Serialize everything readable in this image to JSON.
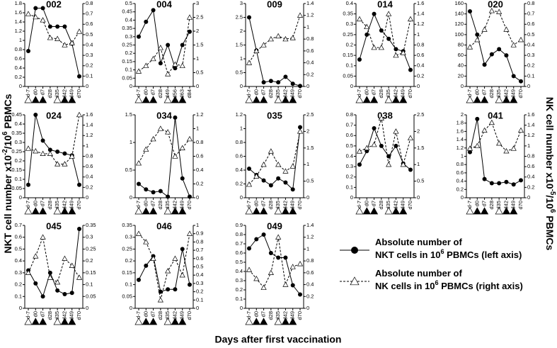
{
  "y_label": [
    "NKT cell number x10",
    "-2",
    "/10",
    "6",
    " PBMCs"
  ],
  "y2_label": [
    "NK cell number x10",
    "-5",
    "/10",
    "6",
    " PBMCs"
  ],
  "x_label": "Days after first vaccination",
  "legend": [
    {
      "lines": [
        [
          "Absolute number of"
        ],
        [
          "NKT cells in 10",
          "6",
          " PBMCs (left axis)"
        ]
      ]
    },
    {
      "lines": [
        [
          "Absolute number of"
        ],
        [
          "NK cells in 10",
          "6",
          " PBMCs (right axis)"
        ]
      ]
    }
  ],
  "chart_data": [
    {
      "type": "line",
      "title": "002",
      "categories": [
        "d-7",
        "d0",
        "d7",
        "d28",
        "d35",
        "d42",
        "d49",
        "d70"
      ],
      "ylim": [
        0,
        1.8
      ],
      "yticks": [
        0,
        0.2,
        0.4,
        0.6,
        0.8,
        1,
        1.2,
        1.4,
        1.6,
        1.8
      ],
      "y2lim": [
        0,
        0.8
      ],
      "y2ticks": [
        0,
        0.1,
        0.2,
        0.3,
        0.4,
        0.5,
        0.6,
        0.7,
        0.8
      ],
      "series": [
        {
          "color": "#000000",
          "values": [
            0.77,
            1.7,
            1.7,
            1.3,
            1.3,
            1.3,
            0.93,
            0.22
          ]
        },
        {
          "color": "#000000",
          "axis": "y2",
          "values": [
            0.7,
            0.67,
            0.64,
            0.47,
            0.46,
            0.4,
            0.42,
            0.53
          ]
        }
      ]
    },
    {
      "type": "line",
      "title": "004",
      "categories": [
        "d-7",
        "d0",
        "d7",
        "d28",
        "d49",
        "d56",
        "d63",
        "d84"
      ],
      "ylim": [
        0,
        0.5
      ],
      "yticks": [
        0,
        0.05,
        0.1,
        0.15,
        0.2,
        0.25,
        0.3,
        0.35,
        0.4,
        0.45,
        0.5
      ],
      "y2lim": [
        0,
        3
      ],
      "y2ticks": [
        0,
        0.5,
        1,
        1.5,
        2,
        2.5,
        3
      ],
      "series": [
        {
          "color": "#000000",
          "values": [
            0.3,
            0.39,
            0.46,
            0.14,
            0.25,
            0.11,
            0.25,
            0.33
          ]
        },
        {
          "color": "#000000",
          "axis": "y2",
          "values": [
            0.55,
            0.75,
            1.0,
            1.4,
            0.45,
            0.8,
            0.75,
            2.5
          ]
        }
      ]
    },
    {
      "type": "line",
      "title": "009",
      "categories": [
        "d-7",
        "d0",
        "d7",
        "d28",
        "d35",
        "d42",
        "d49",
        "d70"
      ],
      "ylim": [
        0,
        3
      ],
      "yticks": [
        0,
        0.5,
        1,
        1.5,
        2,
        2.5,
        3
      ],
      "y2lim": [
        0,
        1.4
      ],
      "y2ticks": [
        0,
        0.2,
        0.4,
        0.6,
        0.8,
        1,
        1.2,
        1.4
      ],
      "series": [
        {
          "color": "#000000",
          "values": [
            2.5,
            1.3,
            0.15,
            0.2,
            0.15,
            0.35,
            0.1,
            0.02
          ]
        },
        {
          "color": "#000000",
          "axis": "y2",
          "values": [
            0.4,
            0.6,
            0.7,
            0.8,
            0.85,
            0.8,
            0.82,
            1.2
          ]
        }
      ]
    },
    {
      "type": "line",
      "title": "014",
      "categories": [
        "d-7",
        "d0",
        "d7",
        "d28",
        "d35",
        "d42",
        "d49",
        "d70"
      ],
      "ylim": [
        0,
        0.4
      ],
      "yticks": [
        0,
        0.05,
        0.1,
        0.15,
        0.2,
        0.25,
        0.3,
        0.35,
        0.4
      ],
      "y2lim": [
        0,
        1.6
      ],
      "y2ticks": [
        0,
        0.2,
        0.4,
        0.6,
        0.8,
        1,
        1.2,
        1.4,
        1.6
      ],
      "series": [
        {
          "color": "#000000",
          "values": [
            0.13,
            0.25,
            0.35,
            0.27,
            0.23,
            0.18,
            0.17,
            0.08
          ]
        },
        {
          "color": "#000000",
          "axis": "y2",
          "values": [
            1.3,
            1.15,
            0.75,
            0.75,
            1.4,
            0.6,
            0.65,
            1.3
          ]
        }
      ]
    },
    {
      "type": "line",
      "title": "020",
      "categories": [
        "d-7",
        "d0",
        "d7",
        "d28",
        "d35",
        "d42",
        "d49",
        "d70"
      ],
      "ylim": [
        0,
        160
      ],
      "yticks": [
        0,
        20,
        40,
        60,
        80,
        100,
        120,
        140,
        160
      ],
      "y2lim": [
        0,
        0.8
      ],
      "y2ticks": [
        0,
        0.1,
        0.2,
        0.3,
        0.4,
        0.5,
        0.6,
        0.7,
        0.8
      ],
      "series": [
        {
          "color": "#000000",
          "values": [
            145,
            100,
            42,
            62,
            72,
            60,
            20,
            10
          ]
        },
        {
          "color": "#000000",
          "axis": "y2",
          "values": [
            0.38,
            0.45,
            0.55,
            0.73,
            0.72,
            0.55,
            0.4,
            0.45
          ]
        }
      ]
    },
    {
      "type": "line",
      "title": "024",
      "categories": [
        "d-7",
        "d0",
        "d7",
        "d28",
        "d35",
        "d42",
        "d49",
        "d70"
      ],
      "ylim": [
        0,
        0.45
      ],
      "yticks": [
        0,
        0.05,
        0.1,
        0.15,
        0.2,
        0.25,
        0.3,
        0.35,
        0.4,
        0.45
      ],
      "y2lim": [
        0,
        1.6
      ],
      "y2ticks": [
        0,
        0.2,
        0.4,
        0.6,
        0.8,
        1,
        1.2,
        1.4,
        1.6
      ],
      "series": [
        {
          "color": "#000000",
          "values": [
            0.07,
            0.45,
            0.31,
            0.26,
            0.25,
            0.24,
            0.23,
            0.07
          ]
        },
        {
          "color": "#000000",
          "axis": "y2",
          "values": [
            0.95,
            0.9,
            0.85,
            0.85,
            0.65,
            0.65,
            0.8,
            1.6
          ]
        }
      ]
    },
    {
      "type": "line",
      "title": "034",
      "categories": [
        "d-7",
        "d0",
        "d7",
        "d28",
        "d35",
        "d42",
        "d49",
        "d70"
      ],
      "ylim": [
        0,
        1.5
      ],
      "yticks": [
        0,
        0.5,
        1,
        1.5
      ],
      "y2lim": [
        0,
        1.2
      ],
      "y2ticks": [
        0,
        0.2,
        0.4,
        0.6,
        0.8,
        1,
        1.2
      ],
      "series": [
        {
          "color": "#000000",
          "values": [
            0.25,
            0.15,
            0.1,
            0.12,
            0.02,
            1.45,
            0.35,
            0.02
          ]
        },
        {
          "color": "#000000",
          "axis": "y2",
          "values": [
            0.5,
            0.7,
            0.85,
            1.0,
            0.95,
            0.6,
            0.72,
            0.85
          ]
        }
      ]
    },
    {
      "type": "line",
      "title": "035",
      "categories": [
        "d-7",
        "d0",
        "d7",
        "d28",
        "d35",
        "d42",
        "d49",
        "d70"
      ],
      "ylim": [
        0,
        1.2
      ],
      "yticks": [
        0,
        0.2,
        0.4,
        0.6,
        0.8,
        1,
        1.2
      ],
      "y2lim": [
        0,
        2.5
      ],
      "y2ticks": [
        0,
        0.5,
        1,
        1.5,
        2,
        2.5
      ],
      "series": [
        {
          "color": "#000000",
          "values": [
            0.42,
            0.33,
            0.25,
            0.18,
            0.28,
            0.22,
            0.12,
            1.02
          ]
        },
        {
          "color": "#000000",
          "axis": "y2",
          "values": [
            0.4,
            0.65,
            1.0,
            1.4,
            1.0,
            0.8,
            0.95,
            2.0
          ]
        }
      ]
    },
    {
      "type": "line",
      "title": "038",
      "categories": [
        "d-7",
        "d0",
        "d7",
        "d28",
        "d35",
        "d42",
        "d49",
        "d70"
      ],
      "ylim": [
        0,
        0.8
      ],
      "yticks": [
        0,
        0.1,
        0.2,
        0.3,
        0.4,
        0.5,
        0.6,
        0.7,
        0.8
      ],
      "y2lim": [
        0,
        2.5
      ],
      "y2ticks": [
        0,
        0.5,
        1,
        1.5,
        2,
        2.5
      ],
      "series": [
        {
          "color": "#000000",
          "values": [
            0.32,
            0.45,
            0.67,
            0.5,
            0.4,
            0.5,
            0.33,
            0.27
          ]
        },
        {
          "color": "#000000",
          "axis": "y2",
          "values": [
            1.4,
            1.5,
            1.6,
            2.4,
            1.0,
            2.0,
            1.0,
            1.8
          ]
        }
      ]
    },
    {
      "type": "line",
      "title": "041",
      "categories": [
        "d-7",
        "d0",
        "d7",
        "d28",
        "d35",
        "d42",
        "d49",
        "d70"
      ],
      "ylim": [
        0,
        2
      ],
      "yticks": [
        0,
        0.2,
        0.4,
        0.6,
        0.8,
        1,
        1.2,
        1.4,
        1.6,
        1.8,
        2
      ],
      "y2lim": [
        0,
        1.6
      ],
      "y2ticks": [
        0,
        0.2,
        0.4,
        0.6,
        0.8,
        1,
        1.2,
        1.4,
        1.6
      ],
      "series": [
        {
          "color": "#000000",
          "values": [
            1.1,
            1.9,
            0.45,
            0.35,
            0.35,
            0.38,
            0.32,
            0.42
          ]
        },
        {
          "color": "#000000",
          "axis": "y2",
          "values": [
            0.95,
            1.0,
            1.3,
            1.45,
            1.05,
            0.9,
            0.95,
            1.3
          ]
        }
      ]
    },
    {
      "type": "line",
      "title": "045",
      "categories": [
        "d-7",
        "d0",
        "d7",
        "d28",
        "d35",
        "d42",
        "d49",
        "d70"
      ],
      "ylim": [
        0,
        0.7
      ],
      "yticks": [
        0,
        0.1,
        0.2,
        0.3,
        0.4,
        0.5,
        0.6,
        0.7
      ],
      "y2lim": [
        0,
        0.35
      ],
      "y2ticks": [
        0,
        0.05,
        0.1,
        0.15,
        0.2,
        0.25,
        0.3,
        0.35
      ],
      "series": [
        {
          "color": "#000000",
          "values": [
            0.32,
            0.21,
            0.1,
            0.3,
            0.15,
            0.12,
            0.13,
            0.67
          ]
        },
        {
          "color": "#000000",
          "axis": "y2",
          "values": [
            0.15,
            0.22,
            0.3,
            0.13,
            0.11,
            0.21,
            0.18,
            0.13
          ]
        }
      ]
    },
    {
      "type": "line",
      "title": "046",
      "categories": [
        "d-7",
        "d0",
        "d7",
        "d28",
        "d35",
        "d42",
        "d49",
        "d70"
      ],
      "ylim": [
        0,
        0.35
      ],
      "yticks": [
        0,
        0.05,
        0.1,
        0.15,
        0.2,
        0.25,
        0.3,
        0.35
      ],
      "y2lim": [
        0,
        1
      ],
      "y2ticks": [
        0,
        0.1,
        0.2,
        0.3,
        0.4,
        0.5,
        0.6,
        0.7,
        0.8,
        0.9,
        1
      ],
      "series": [
        {
          "color": "#000000",
          "values": [
            0.12,
            0.18,
            0.22,
            0.07,
            0.08,
            0.08,
            0.25,
            0.1
          ]
        },
        {
          "color": "#000000",
          "axis": "y2",
          "values": [
            0.9,
            0.8,
            0.6,
            0.1,
            0.45,
            0.6,
            0.4,
            0.9
          ]
        }
      ]
    },
    {
      "type": "line",
      "title": "049",
      "categories": [
        "d-7",
        "d0",
        "d7",
        "d28",
        "d35",
        "d42",
        "d49",
        "d70"
      ],
      "ylim": [
        0,
        0.9
      ],
      "yticks": [
        0,
        0.1,
        0.2,
        0.3,
        0.4,
        0.5,
        0.6,
        0.7,
        0.8,
        0.9
      ],
      "y2lim": [
        0,
        1.4
      ],
      "y2ticks": [
        0,
        0.2,
        0.4,
        0.6,
        0.8,
        1,
        1.2,
        1.4
      ],
      "series": [
        {
          "color": "#000000",
          "values": [
            0.65,
            0.75,
            0.8,
            0.6,
            0.55,
            0.55,
            0.25,
            0.15
          ]
        },
        {
          "color": "#000000",
          "axis": "y2",
          "values": [
            0.65,
            0.5,
            0.35,
            0.6,
            1.2,
            0.4,
            0.7,
            0.75
          ]
        }
      ]
    }
  ]
}
